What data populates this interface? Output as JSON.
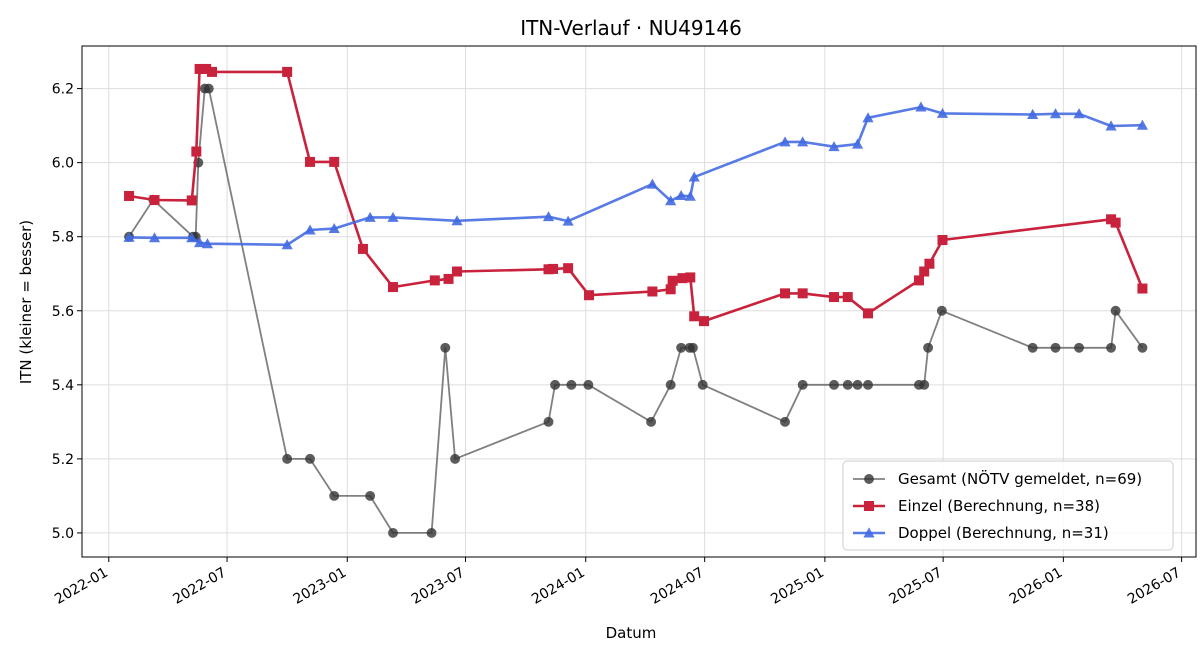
{
  "chart_data": {
    "type": "line",
    "title": "ITN-Verlauf · NU49146",
    "xlabel": "Datum",
    "ylabel": "ITN  (kleiner = besser)",
    "x_type": "date",
    "xlim": [
      "2021-11-21",
      "2026-07-23"
    ],
    "ylim": [
      4.935,
      6.315
    ],
    "grid": true,
    "legend_position": "lower-right",
    "x_ticks": [
      "2022-01-01",
      "2022-07-01",
      "2023-01-01",
      "2023-07-01",
      "2024-01-01",
      "2024-07-01",
      "2025-01-01",
      "2025-07-01",
      "2026-01-01",
      "2026-07-01"
    ],
    "x_tick_labels": [
      "2022-01",
      "2022-07",
      "2023-01",
      "2023-07",
      "2024-01",
      "2024-07",
      "2025-01",
      "2025-07",
      "2026-01",
      "2026-07"
    ],
    "y_ticks": [
      5.0,
      5.2,
      5.4,
      5.6,
      5.8,
      6.0,
      6.2
    ],
    "y_tick_labels": [
      "5.0",
      "5.2",
      "5.4",
      "5.6",
      "5.8",
      "6.0",
      "6.2"
    ],
    "series": [
      {
        "name": "Gesamt (NÖTV gemeldet, n=69)",
        "color": "#555555",
        "marker": "circle",
        "points": [
          {
            "x": "2022-02-01",
            "y": 5.8
          },
          {
            "x": "2022-03-10",
            "y": 5.9
          },
          {
            "x": "2022-05-10",
            "y": 5.8
          },
          {
            "x": "2022-05-14",
            "y": 5.8
          },
          {
            "x": "2022-05-18",
            "y": 6.0
          },
          {
            "x": "2022-05-28",
            "y": 6.2
          },
          {
            "x": "2022-06-03",
            "y": 6.2
          },
          {
            "x": "2022-10-01",
            "y": 5.2
          },
          {
            "x": "2022-11-05",
            "y": 5.2
          },
          {
            "x": "2022-12-12",
            "y": 5.1
          },
          {
            "x": "2023-02-05",
            "y": 5.1
          },
          {
            "x": "2023-03-12",
            "y": 5.0
          },
          {
            "x": "2023-05-10",
            "y": 5.0
          },
          {
            "x": "2023-05-31",
            "y": 5.5
          },
          {
            "x": "2023-06-15",
            "y": 5.2
          },
          {
            "x": "2023-11-05",
            "y": 5.3
          },
          {
            "x": "2023-11-15",
            "y": 5.4
          },
          {
            "x": "2023-12-10",
            "y": 5.4
          },
          {
            "x": "2024-01-05",
            "y": 5.4
          },
          {
            "x": "2024-04-10",
            "y": 5.3
          },
          {
            "x": "2024-05-10",
            "y": 5.4
          },
          {
            "x": "2024-05-26",
            "y": 5.5
          },
          {
            "x": "2024-06-08",
            "y": 5.5
          },
          {
            "x": "2024-06-13",
            "y": 5.5
          },
          {
            "x": "2024-06-28",
            "y": 5.4
          },
          {
            "x": "2024-11-01",
            "y": 5.3
          },
          {
            "x": "2024-11-28",
            "y": 5.4
          },
          {
            "x": "2025-01-15",
            "y": 5.4
          },
          {
            "x": "2025-02-05",
            "y": 5.4
          },
          {
            "x": "2025-02-20",
            "y": 5.4
          },
          {
            "x": "2025-03-08",
            "y": 5.4
          },
          {
            "x": "2025-05-25",
            "y": 5.4
          },
          {
            "x": "2025-06-02",
            "y": 5.4
          },
          {
            "x": "2025-06-08",
            "y": 5.5
          },
          {
            "x": "2025-06-29",
            "y": 5.6
          },
          {
            "x": "2025-11-15",
            "y": 5.5
          },
          {
            "x": "2025-12-20",
            "y": 5.5
          },
          {
            "x": "2026-01-25",
            "y": 5.5
          },
          {
            "x": "2026-03-15",
            "y": 5.5
          },
          {
            "x": "2026-03-22",
            "y": 5.6
          },
          {
            "x": "2026-05-02",
            "y": 5.5
          }
        ]
      },
      {
        "name": "Einzel (Berechnung, n=38)",
        "color": "#c8223c",
        "marker": "square",
        "points": [
          {
            "x": "2022-02-01",
            "y": 5.91
          },
          {
            "x": "2022-03-12",
            "y": 5.899
          },
          {
            "x": "2022-05-08",
            "y": 5.898
          },
          {
            "x": "2022-05-15",
            "y": 6.03
          },
          {
            "x": "2022-05-20",
            "y": 6.253
          },
          {
            "x": "2022-05-30",
            "y": 6.253
          },
          {
            "x": "2022-06-08",
            "y": 6.245
          },
          {
            "x": "2022-10-01",
            "y": 6.245
          },
          {
            "x": "2022-11-05",
            "y": 6.002
          },
          {
            "x": "2022-12-12",
            "y": 6.002
          },
          {
            "x": "2023-01-25",
            "y": 5.767
          },
          {
            "x": "2023-03-12",
            "y": 5.664
          },
          {
            "x": "2023-05-15",
            "y": 5.682
          },
          {
            "x": "2023-06-05",
            "y": 5.686
          },
          {
            "x": "2023-06-18",
            "y": 5.706
          },
          {
            "x": "2023-11-05",
            "y": 5.712
          },
          {
            "x": "2023-11-12",
            "y": 5.713
          },
          {
            "x": "2023-12-05",
            "y": 5.715
          },
          {
            "x": "2024-01-06",
            "y": 5.642
          },
          {
            "x": "2024-04-12",
            "y": 5.652
          },
          {
            "x": "2024-05-10",
            "y": 5.658
          },
          {
            "x": "2024-05-13",
            "y": 5.681
          },
          {
            "x": "2024-05-28",
            "y": 5.688
          },
          {
            "x": "2024-06-09",
            "y": 5.69
          },
          {
            "x": "2024-06-15",
            "y": 5.585
          },
          {
            "x": "2024-06-30",
            "y": 5.572
          },
          {
            "x": "2024-11-01",
            "y": 5.647
          },
          {
            "x": "2024-11-28",
            "y": 5.647
          },
          {
            "x": "2025-01-15",
            "y": 5.637
          },
          {
            "x": "2025-02-05",
            "y": 5.637
          },
          {
            "x": "2025-03-08",
            "y": 5.593
          },
          {
            "x": "2025-05-25",
            "y": 5.682
          },
          {
            "x": "2025-06-02",
            "y": 5.706
          },
          {
            "x": "2025-06-10",
            "y": 5.727
          },
          {
            "x": "2025-06-30",
            "y": 5.791
          },
          {
            "x": "2026-03-15",
            "y": 5.847
          },
          {
            "x": "2026-03-22",
            "y": 5.838
          },
          {
            "x": "2026-05-02",
            "y": 5.66
          }
        ]
      },
      {
        "name": "Doppel (Berechnung, n=31)",
        "color": "#4169e1",
        "marker": "triangle",
        "points": [
          {
            "x": "2022-02-01",
            "y": 5.798
          },
          {
            "x": "2022-03-12",
            "y": 5.797
          },
          {
            "x": "2022-05-08",
            "y": 5.797
          },
          {
            "x": "2022-05-20",
            "y": 5.784
          },
          {
            "x": "2022-06-01",
            "y": 5.781
          },
          {
            "x": "2022-10-01",
            "y": 5.778
          },
          {
            "x": "2022-11-05",
            "y": 5.818
          },
          {
            "x": "2022-12-12",
            "y": 5.822
          },
          {
            "x": "2023-02-05",
            "y": 5.852
          },
          {
            "x": "2023-03-12",
            "y": 5.852
          },
          {
            "x": "2023-06-18",
            "y": 5.843
          },
          {
            "x": "2023-11-05",
            "y": 5.854
          },
          {
            "x": "2023-12-05",
            "y": 5.842
          },
          {
            "x": "2024-04-12",
            "y": 5.942
          },
          {
            "x": "2024-05-10",
            "y": 5.897
          },
          {
            "x": "2024-05-26",
            "y": 5.911
          },
          {
            "x": "2024-06-09",
            "y": 5.909
          },
          {
            "x": "2024-06-15",
            "y": 5.961
          },
          {
            "x": "2024-11-01",
            "y": 6.056
          },
          {
            "x": "2024-11-28",
            "y": 6.056
          },
          {
            "x": "2025-01-15",
            "y": 6.043
          },
          {
            "x": "2025-02-20",
            "y": 6.05
          },
          {
            "x": "2025-03-08",
            "y": 6.121
          },
          {
            "x": "2025-05-28",
            "y": 6.15
          },
          {
            "x": "2025-06-30",
            "y": 6.133
          },
          {
            "x": "2025-11-15",
            "y": 6.13
          },
          {
            "x": "2025-12-20",
            "y": 6.132
          },
          {
            "x": "2026-01-25",
            "y": 6.132
          },
          {
            "x": "2026-03-15",
            "y": 6.099
          },
          {
            "x": "2026-05-02",
            "y": 6.101
          }
        ]
      }
    ]
  }
}
